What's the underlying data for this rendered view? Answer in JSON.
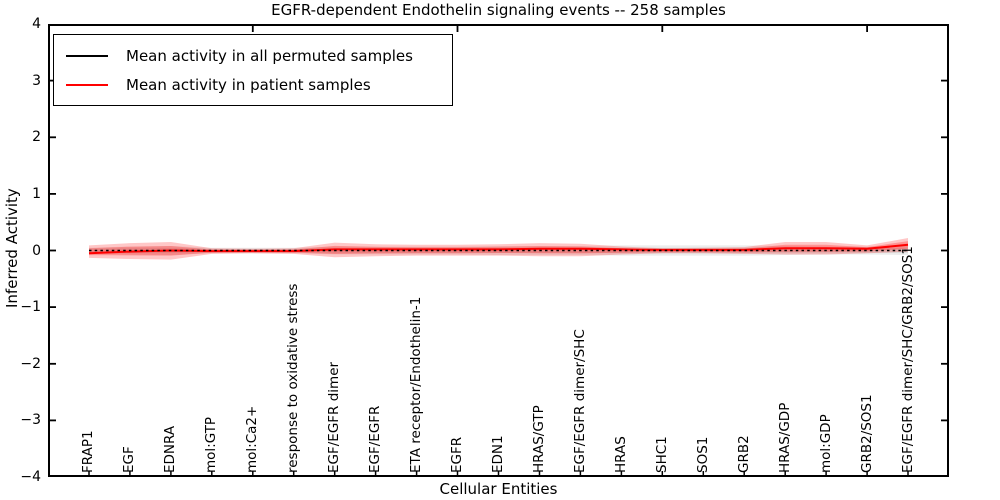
{
  "figure": {
    "title": "EGFR-dependent Endothelin signaling events -- 258 samples",
    "xlabel": "Cellular Entities",
    "ylabel": "Inferred Activity"
  },
  "chart_data": {
    "type": "line",
    "title": "EGFR-dependent Endothelin signaling events -- 258 samples",
    "xlabel": "Cellular Entities",
    "ylabel": "Inferred Activity",
    "ylim": [
      -4,
      4
    ],
    "xlim": [
      0,
      22
    ],
    "grid": false,
    "legend_position": "upper left",
    "yticks": [
      {
        "value": 4,
        "label": "4"
      },
      {
        "value": 3,
        "label": "3"
      },
      {
        "value": 2,
        "label": "2"
      },
      {
        "value": 1,
        "label": "1"
      },
      {
        "value": 0,
        "label": "0"
      },
      {
        "value": -1,
        "label": "−1"
      },
      {
        "value": -2,
        "label": "−2"
      },
      {
        "value": -3,
        "label": "−3"
      },
      {
        "value": -4,
        "label": "−4"
      }
    ],
    "top_xtick_values": [
      5,
      10,
      15,
      20
    ],
    "categories": [
      "FRAP1",
      "EGF",
      "EDNRA",
      "mol:GTP",
      "mol:Ca2+",
      "response to oxidative stress",
      "EGF/EGFR dimer",
      "EGF/EGFR",
      "ETA receptor/Endothelin-1",
      "EGFR",
      "EDN1",
      "HRAS/GTP",
      "EGF/EGFR dimer/SHC",
      "HRAS",
      "SHC1",
      "SOS1",
      "GRB2",
      "HRAS/GDP",
      "mol:GDP",
      "GRB2/SOS1",
      "EGF/EGFR dimer/SHC/GRB2/SOS1"
    ],
    "x": [
      1,
      2,
      3,
      4,
      5,
      6,
      7,
      8,
      9,
      10,
      11,
      12,
      13,
      14,
      15,
      16,
      17,
      18,
      19,
      20,
      21
    ],
    "series": [
      {
        "name": "Mean activity in all permuted samples",
        "color": "#000000",
        "style": "dashed",
        "values": [
          0,
          0,
          0,
          0,
          0,
          0,
          0,
          0,
          0,
          0,
          0,
          0,
          0,
          0,
          0,
          0,
          0,
          0,
          0,
          0,
          0
        ]
      },
      {
        "name": "Mean activity in patient samples",
        "color": "#ff0000",
        "style": "solid",
        "values": [
          -0.05,
          -0.02,
          0.0,
          -0.01,
          -0.01,
          -0.01,
          0.02,
          0.02,
          0.02,
          0.02,
          0.02,
          0.03,
          0.03,
          0.02,
          0.01,
          0.01,
          0.01,
          0.04,
          0.04,
          0.03,
          0.1
        ]
      }
    ],
    "bands": [
      {
        "name": "permuted-samples-spread",
        "color": "#aaaaaa",
        "upper": [
          0.05,
          0.07,
          0.08,
          0.05,
          0.05,
          0.05,
          0.07,
          0.07,
          0.07,
          0.07,
          0.08,
          0.08,
          0.08,
          0.09,
          0.09,
          0.09,
          0.09,
          0.08,
          0.07,
          0.07,
          0.08
        ],
        "lower": [
          -0.05,
          -0.07,
          -0.08,
          -0.05,
          -0.05,
          -0.05,
          -0.07,
          -0.07,
          -0.07,
          -0.07,
          -0.08,
          -0.08,
          -0.08,
          -0.09,
          -0.09,
          -0.09,
          -0.09,
          -0.08,
          -0.07,
          -0.07,
          -0.08
        ]
      },
      {
        "name": "patient-samples-spread",
        "color": "#ff0000",
        "upper": [
          0.09,
          0.13,
          0.15,
          0.04,
          0.03,
          0.04,
          0.14,
          0.11,
          0.1,
          0.1,
          0.11,
          0.13,
          0.12,
          0.07,
          0.04,
          0.05,
          0.06,
          0.15,
          0.15,
          0.09,
          0.22
        ],
        "lower": [
          -0.13,
          -0.15,
          -0.16,
          -0.06,
          -0.05,
          -0.06,
          -0.12,
          -0.1,
          -0.09,
          -0.09,
          -0.09,
          -0.1,
          -0.1,
          -0.07,
          -0.05,
          -0.05,
          -0.06,
          -0.07,
          -0.07,
          -0.05,
          -0.02
        ]
      }
    ]
  }
}
